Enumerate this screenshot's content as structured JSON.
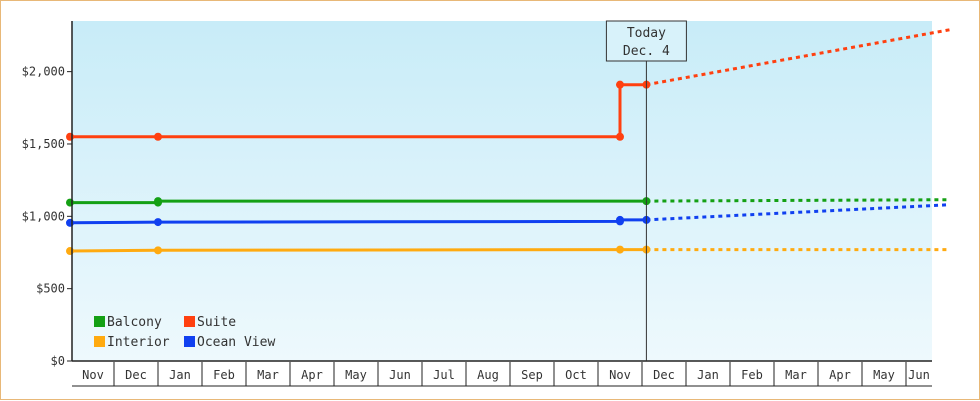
{
  "chart_data": {
    "type": "line",
    "title": "",
    "xlabel": "",
    "ylabel": "",
    "ylim": [
      0,
      2350
    ],
    "y_ticks": [
      {
        "value": 0,
        "label": "$0"
      },
      {
        "value": 500,
        "label": "$500"
      },
      {
        "value": 1000,
        "label": "$1,000"
      },
      {
        "value": 1500,
        "label": "$1,500"
      },
      {
        "value": 2000,
        "label": "$2,000"
      }
    ],
    "x_months": [
      "Nov",
      "Dec",
      "Jan",
      "Feb",
      "Mar",
      "Apr",
      "May",
      "Jun",
      "Jul",
      "Aug",
      "Sep",
      "Oct",
      "Nov",
      "Dec",
      "Jan",
      "Feb",
      "Mar",
      "Apr",
      "May",
      "Jun"
    ],
    "today": {
      "line1": "Today",
      "line2": "Dec. 4",
      "month_index": 13.1
    },
    "legend_position": "bottom-left",
    "grid": false,
    "background": "light-blue-gradient",
    "series": [
      {
        "name": "Balcony",
        "color": "#14a014",
        "points": [
          [
            0,
            1095
          ],
          [
            2,
            1095
          ],
          [
            2,
            1105
          ],
          [
            13.1,
            1105
          ]
        ],
        "markers": [
          0,
          2,
          2,
          13.1
        ],
        "projection": [
          [
            13.1,
            1105
          ],
          [
            20,
            1115
          ]
        ]
      },
      {
        "name": "Suite",
        "color": "#ff4010",
        "points": [
          [
            0,
            1550
          ],
          [
            2,
            1550
          ],
          [
            12.5,
            1550
          ],
          [
            12.5,
            1910
          ],
          [
            13.1,
            1910
          ]
        ],
        "markers": [
          0,
          2,
          12.5,
          12.5,
          13.1
        ],
        "projection": [
          [
            13.1,
            1910
          ],
          [
            20,
            2290
          ]
        ]
      },
      {
        "name": "Interior",
        "color": "#ffaa10",
        "points": [
          [
            0,
            760
          ],
          [
            2,
            765
          ],
          [
            12.5,
            770
          ],
          [
            13.1,
            770
          ]
        ],
        "markers": [
          0,
          2,
          12.5,
          13.1
        ],
        "projection": [
          [
            13.1,
            770
          ],
          [
            20,
            770
          ]
        ]
      },
      {
        "name": "Ocean View",
        "color": "#1040f0",
        "points": [
          [
            0,
            955
          ],
          [
            2,
            960
          ],
          [
            12.5,
            965
          ],
          [
            12.5,
            975
          ],
          [
            13.1,
            975
          ]
        ],
        "markers": [
          0,
          2,
          12.5,
          13.1
        ],
        "projection": [
          [
            13.1,
            975
          ],
          [
            20,
            1080
          ]
        ]
      }
    ]
  }
}
